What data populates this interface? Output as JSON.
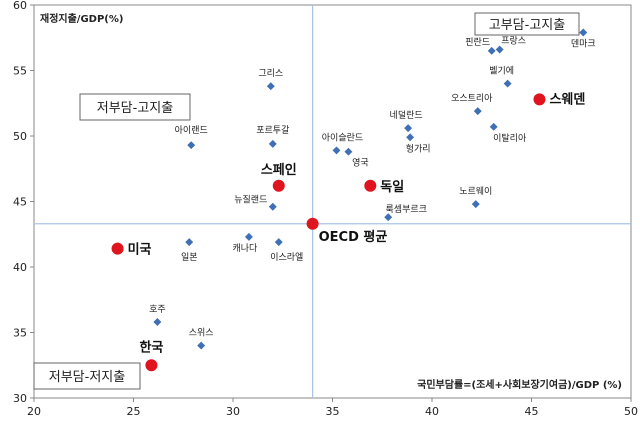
{
  "chart_data": {
    "type": "scatter",
    "ylabel": "재정지출/GDP(%)",
    "xlabel": "국민부담률=(조세+사회보장기여금)/GDP (%)",
    "xlim": [
      20,
      50
    ],
    "ylim": [
      30,
      60
    ],
    "x_ticks": [
      "20",
      "25",
      "30",
      "35",
      "40",
      "45",
      "50"
    ],
    "y_ticks": [
      "30",
      "35",
      "40",
      "45",
      "50",
      "55",
      "60"
    ],
    "reference_lines": {
      "x": 34.0,
      "y": 43.3
    },
    "quadrant_labels": [
      "고부담-고지출",
      "저부담-고지출",
      "저부담-저지출"
    ],
    "colors": {
      "small_marker": "#3f6fb5",
      "highlight_marker": "#e0141e",
      "ref_line": "#a9c4e4"
    },
    "points": [
      {
        "label": "덴마크",
        "x": 47.6,
        "y": 57.9,
        "highlight": false
      },
      {
        "label": "핀란드",
        "x": 43.0,
        "y": 56.5,
        "highlight": false
      },
      {
        "label": "프랑스",
        "x": 43.4,
        "y": 56.6,
        "highlight": false
      },
      {
        "label": "그리스",
        "x": 31.9,
        "y": 53.8,
        "highlight": false
      },
      {
        "label": "벨기에",
        "x": 43.8,
        "y": 54.0,
        "highlight": false
      },
      {
        "label": "스웨덴",
        "x": 45.4,
        "y": 52.8,
        "highlight": true
      },
      {
        "label": "오스트리아",
        "x": 42.3,
        "y": 51.9,
        "highlight": false
      },
      {
        "label": "네덜란드",
        "x": 38.8,
        "y": 50.6,
        "highlight": false
      },
      {
        "label": "이탈리아",
        "x": 43.1,
        "y": 50.7,
        "highlight": false
      },
      {
        "label": "헝가리",
        "x": 38.9,
        "y": 49.9,
        "highlight": false
      },
      {
        "label": "아이슬란드",
        "x": 35.2,
        "y": 48.9,
        "highlight": false
      },
      {
        "label": "영국",
        "x": 35.8,
        "y": 48.8,
        "highlight": false
      },
      {
        "label": "아이랜드",
        "x": 27.9,
        "y": 49.3,
        "highlight": false
      },
      {
        "label": "포르투갈",
        "x": 32.0,
        "y": 49.4,
        "highlight": false
      },
      {
        "label": "스페인",
        "x": 32.3,
        "y": 46.2,
        "highlight": true
      },
      {
        "label": "독일",
        "x": 36.9,
        "y": 46.2,
        "highlight": true
      },
      {
        "label": "노르웨이",
        "x": 42.2,
        "y": 44.8,
        "highlight": false
      },
      {
        "label": "룩셈부르크",
        "x": 37.8,
        "y": 43.8,
        "highlight": false
      },
      {
        "label": "뉴질랜드",
        "x": 32.0,
        "y": 44.6,
        "highlight": false
      },
      {
        "label": "OECD 평균",
        "x": 34.0,
        "y": 43.3,
        "highlight": true
      },
      {
        "label": "미국",
        "x": 24.2,
        "y": 41.4,
        "highlight": true
      },
      {
        "label": "일본",
        "x": 27.8,
        "y": 41.9,
        "highlight": false
      },
      {
        "label": "캐나다",
        "x": 30.8,
        "y": 42.3,
        "highlight": false
      },
      {
        "label": "이스라엘",
        "x": 32.3,
        "y": 41.9,
        "highlight": false
      },
      {
        "label": "호주",
        "x": 26.2,
        "y": 35.8,
        "highlight": false
      },
      {
        "label": "스위스",
        "x": 28.4,
        "y": 34.0,
        "highlight": false
      },
      {
        "label": "한국",
        "x": 25.9,
        "y": 32.5,
        "highlight": true
      }
    ]
  }
}
